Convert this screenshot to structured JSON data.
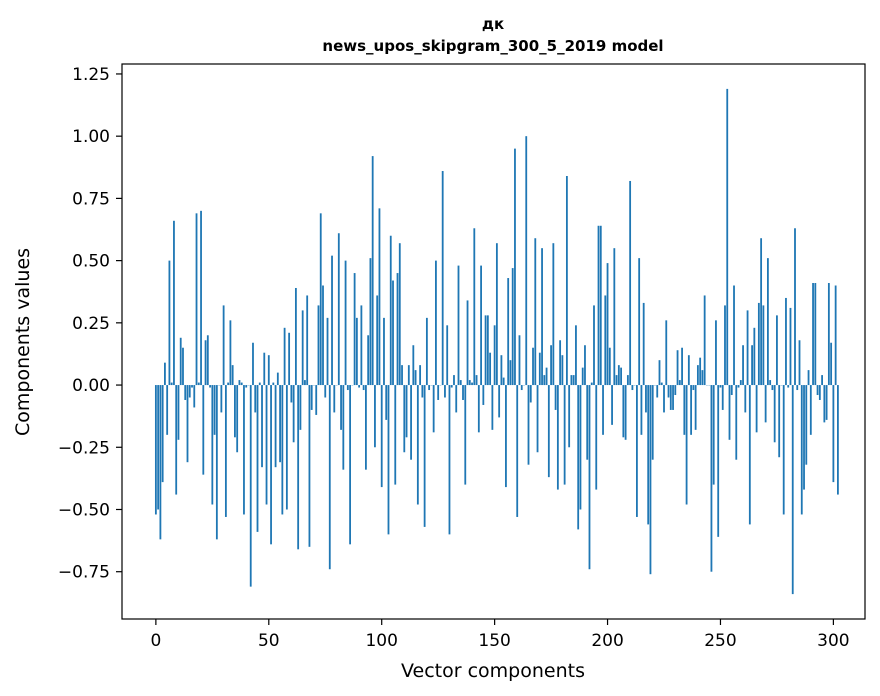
{
  "chart_data": {
    "type": "bar",
    "title": "дк",
    "subtitle": "news_upos_skipgram_300_5_2019 model",
    "xlabel": "Vector components",
    "ylabel": "Components values",
    "xlim": [
      -15,
      314
    ],
    "ylim": [
      -0.94,
      1.29
    ],
    "xticks": [
      0,
      50,
      100,
      150,
      200,
      250,
      300
    ],
    "yticks": [
      -0.75,
      -0.5,
      -0.25,
      0.0,
      0.25,
      0.5,
      0.75,
      1.0,
      1.25
    ],
    "ytick_labels": [
      "−0.75",
      "−0.50",
      "−0.25",
      "0.00",
      "0.25",
      "0.50",
      "0.75",
      "1.00",
      "1.25"
    ],
    "color": "#1f77b4",
    "grid": false,
    "values": [
      -0.52,
      -0.5,
      -0.62,
      -0.39,
      0.09,
      -0.2,
      0.5,
      0.01,
      0.66,
      -0.44,
      -0.22,
      0.19,
      0.15,
      -0.06,
      -0.31,
      -0.05,
      -0.01,
      -0.09,
      0.69,
      0.01,
      0.7,
      -0.36,
      0.18,
      0.2,
      -0.01,
      -0.48,
      -0.2,
      -0.62,
      0.0,
      -0.11,
      0.32,
      -0.53,
      0.01,
      0.26,
      0.08,
      -0.21,
      -0.27,
      0.02,
      0.01,
      -0.52,
      -0.01,
      0.0,
      -0.81,
      0.17,
      -0.11,
      -0.59,
      0.01,
      -0.33,
      0.13,
      -0.48,
      0.12,
      -0.64,
      0.01,
      -0.33,
      0.05,
      -0.31,
      -0.52,
      0.23,
      -0.5,
      0.21,
      -0.07,
      -0.23,
      0.39,
      -0.66,
      -0.18,
      0.3,
      0.02,
      0.36,
      -0.65,
      -0.1,
      0.0,
      -0.12,
      0.32,
      0.69,
      0.4,
      -0.05,
      0.27,
      -0.74,
      0.52,
      -0.11,
      0.0,
      0.61,
      -0.18,
      -0.34,
      0.5,
      -0.02,
      -0.64,
      0.0,
      0.45,
      0.27,
      -0.01,
      0.32,
      -0.02,
      -0.34,
      0.2,
      0.51,
      0.92,
      -0.25,
      0.36,
      0.71,
      -0.41,
      0.27,
      -0.14,
      -0.6,
      0.6,
      0.42,
      -0.4,
      0.45,
      0.57,
      0.08,
      -0.27,
      -0.21,
      0.08,
      -0.3,
      0.16,
      0.06,
      -0.48,
      0.08,
      -0.05,
      -0.57,
      0.27,
      -0.02,
      0.0,
      -0.19,
      0.5,
      -0.06,
      0.0,
      0.86,
      -0.05,
      0.24,
      -0.6,
      -0.01,
      0.04,
      -0.11,
      0.48,
      0.02,
      -0.06,
      -0.4,
      0.34,
      0.02,
      0.01,
      0.63,
      0.04,
      -0.19,
      0.48,
      -0.08,
      0.28,
      0.28,
      0.13,
      -0.18,
      0.24,
      0.57,
      -0.13,
      0.12,
      0.03,
      -0.41,
      0.43,
      0.1,
      0.47,
      0.95,
      -0.53,
      0.2,
      -0.02,
      0.0,
      1.0,
      -0.32,
      -0.07,
      0.15,
      0.59,
      -0.27,
      0.13,
      0.55,
      0.04,
      0.07,
      -0.37,
      0.16,
      0.57,
      -0.1,
      -0.42,
      0.18,
      0.12,
      -0.4,
      0.84,
      -0.25,
      0.04,
      0.04,
      0.24,
      -0.58,
      -0.5,
      0.07,
      0.16,
      -0.3,
      -0.74,
      0.01,
      0.32,
      -0.42,
      0.64,
      0.64,
      -0.2,
      0.36,
      0.49,
      0.15,
      -0.16,
      0.55,
      0.04,
      0.08,
      0.07,
      -0.21,
      -0.22,
      0.04,
      0.82,
      -0.02,
      0.0,
      -0.53,
      0.51,
      -0.2,
      0.33,
      -0.11,
      -0.56,
      -0.76,
      -0.3,
      0.0,
      -0.05,
      0.1,
      0.01,
      -0.11,
      0.26,
      -0.05,
      -0.1,
      -0.1,
      -0.04,
      0.14,
      0.02,
      0.15,
      -0.2,
      -0.48,
      0.12,
      -0.2,
      -0.02,
      -0.18,
      0.08,
      0.11,
      0.06,
      0.36,
      0.0,
      0.0,
      -0.75,
      -0.4,
      0.26,
      -0.61,
      -0.01,
      -0.1,
      0.32,
      1.19,
      -0.22,
      -0.04,
      0.4,
      -0.3,
      -0.01,
      0.02,
      0.16,
      -0.11,
      0.3,
      -0.56,
      0.16,
      0.23,
      -0.19,
      0.33,
      0.59,
      0.32,
      -0.15,
      0.51,
      0.02,
      -0.02,
      -0.23,
      0.28,
      -0.29,
      0.0,
      -0.52,
      0.35,
      -0.01,
      0.31,
      -0.84,
      0.63,
      -0.02,
      0.18,
      -0.52,
      -0.42,
      -0.32,
      0.06,
      -0.2,
      0.41,
      0.41,
      -0.04,
      -0.06,
      0.04,
      -0.15,
      -0.14,
      0.41,
      0.17,
      -0.39,
      0.4,
      -0.44
    ]
  }
}
